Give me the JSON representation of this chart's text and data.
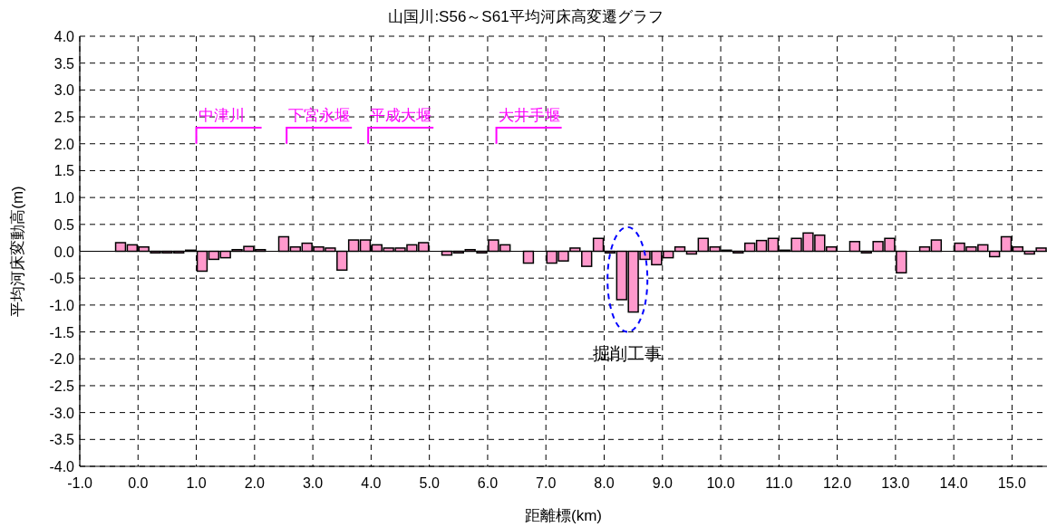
{
  "chart_data": {
    "type": "bar",
    "title": "山国川:S56～S61平均河床高変遷グラフ",
    "xlabel": "距離標(km)",
    "ylabel": "平均河床変動高(m)",
    "x": [
      -0.3,
      -0.1,
      0.1,
      0.3,
      0.5,
      0.7,
      0.9,
      1.1,
      1.3,
      1.5,
      1.7,
      1.9,
      2.1,
      2.5,
      2.7,
      2.9,
      3.1,
      3.3,
      3.5,
      3.7,
      3.9,
      4.1,
      4.3,
      4.5,
      4.7,
      4.9,
      5.3,
      5.5,
      5.7,
      5.9,
      6.1,
      6.3,
      6.7,
      7.1,
      7.3,
      7.5,
      7.7,
      7.9,
      8.1,
      8.3,
      8.5,
      8.7,
      8.9,
      9.1,
      9.3,
      9.5,
      9.7,
      9.9,
      10.1,
      10.3,
      10.5,
      10.7,
      10.9,
      11.1,
      11.3,
      11.5,
      11.7,
      11.9,
      12.3,
      12.5,
      12.7,
      12.9,
      13.1,
      13.5,
      13.7,
      14.1,
      14.3,
      14.5,
      14.7,
      14.9,
      15.1,
      15.3,
      15.5
    ],
    "values": [
      0.16,
      0.12,
      0.08,
      -0.03,
      -0.03,
      -0.03,
      0.02,
      -0.37,
      -0.15,
      -0.12,
      0.03,
      0.09,
      0.03,
      0.27,
      0.08,
      0.15,
      0.08,
      0.06,
      -0.35,
      0.21,
      0.21,
      0.12,
      0.06,
      0.06,
      0.12,
      0.16,
      -0.07,
      -0.03,
      0.03,
      -0.03,
      0.21,
      0.12,
      -0.22,
      -0.22,
      -0.18,
      0.06,
      -0.28,
      0.24,
      -0.03,
      -0.9,
      -1.13,
      -0.15,
      -0.25,
      -0.12,
      0.08,
      -0.05,
      0.24,
      0.08,
      0.02,
      -0.03,
      0.15,
      0.2,
      0.24,
      0.02,
      0.24,
      0.34,
      0.3,
      0.08,
      0.18,
      -0.03,
      0.18,
      0.24,
      -0.4,
      0.08,
      0.21,
      0.15,
      0.08,
      0.12,
      -0.1,
      0.27,
      0.08,
      -0.05,
      0.06
    ],
    "color": "#ff99cc",
    "xlim": [
      -1.0,
      15.6
    ],
    "xticks": [
      {
        "value": -1,
        "label": "-1.0"
      },
      {
        "value": 0,
        "label": "0.0"
      },
      {
        "value": 1,
        "label": "1.0"
      },
      {
        "value": 2,
        "label": "2.0"
      },
      {
        "value": 3,
        "label": "3.0"
      },
      {
        "value": 4,
        "label": "4.0"
      },
      {
        "value": 5,
        "label": "5.0"
      },
      {
        "value": 6,
        "label": "6.0"
      },
      {
        "value": 7,
        "label": "7.0"
      },
      {
        "value": 8,
        "label": "8.0"
      },
      {
        "value": 9,
        "label": "9.0"
      },
      {
        "value": 10,
        "label": "10.0"
      },
      {
        "value": 11,
        "label": "11.0"
      },
      {
        "value": 12,
        "label": "12.0"
      },
      {
        "value": 13,
        "label": "13.0"
      },
      {
        "value": 14,
        "label": "14.0"
      },
      {
        "value": 15,
        "label": "15.0"
      }
    ],
    "ylim": [
      -4.0,
      4.0
    ],
    "yticks": [
      {
        "value": -4,
        "label": "-4.0"
      },
      {
        "value": -3.5,
        "label": "-3.5"
      },
      {
        "value": -3,
        "label": "-3.0"
      },
      {
        "value": -2.5,
        "label": "-2.5"
      },
      {
        "value": -2,
        "label": "-2.0"
      },
      {
        "value": -1.5,
        "label": "-1.5"
      },
      {
        "value": -1,
        "label": "-1.0"
      },
      {
        "value": -0.5,
        "label": "-0.5"
      },
      {
        "value": 0,
        "label": "0.0"
      },
      {
        "value": 0.5,
        "label": "0.5"
      },
      {
        "value": 1,
        "label": "1.0"
      },
      {
        "value": 1.5,
        "label": "1.5"
      },
      {
        "value": 2,
        "label": "2.0"
      },
      {
        "value": 2.5,
        "label": "2.5"
      },
      {
        "value": 3,
        "label": "3.0"
      },
      {
        "value": 3.5,
        "label": "3.5"
      },
      {
        "value": 4,
        "label": "4.0"
      }
    ],
    "grid": true,
    "annotations": [
      "中津川",
      "下宮永堰",
      "平成大堰",
      "大井手堰",
      "掘削工事"
    ]
  }
}
